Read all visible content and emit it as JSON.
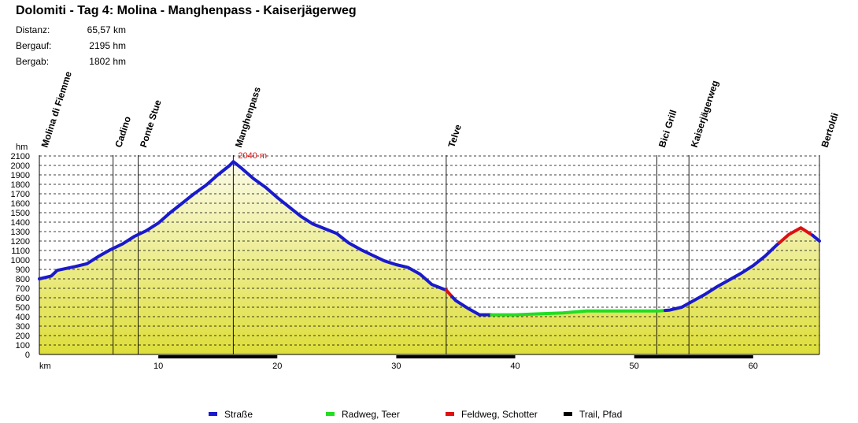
{
  "title": "Dolomiti - Tag 4: Molina - Manghenpass - Kaiserjägerweg",
  "stats": [
    {
      "label": "Distanz:",
      "value": "65,57 km"
    },
    {
      "label": "Bergauf:",
      "value": "2195 hm"
    },
    {
      "label": "Bergab:",
      "value": "1802 hm"
    }
  ],
  "legend": [
    {
      "label": "Straße",
      "color": "#1a1acc"
    },
    {
      "label": "Radweg, Teer",
      "color": "#22dd22"
    },
    {
      "label": "Feldweg, Schotter",
      "color": "#dd1111"
    },
    {
      "label": "Trail, Pfad",
      "color": "#000000"
    }
  ],
  "chart_data": {
    "type": "area",
    "y_unit": "hm",
    "x_unit": "km",
    "xlim": [
      0,
      65.57
    ],
    "ylim": [
      0,
      2100
    ],
    "y_ticks": [
      0,
      100,
      200,
      300,
      400,
      500,
      600,
      700,
      800,
      900,
      1000,
      1100,
      1200,
      1300,
      1400,
      1500,
      1600,
      1700,
      1800,
      1900,
      2000,
      2100
    ],
    "x_ticks": [
      10,
      20,
      30,
      40,
      50,
      60
    ],
    "grid": true,
    "peak_label": "2040 m",
    "peak": {
      "x": 16.3,
      "y": 2040
    },
    "waypoints": [
      {
        "name": "Molina di Fiemme",
        "x": 0
      },
      {
        "name": "Cadino",
        "x": 6.2
      },
      {
        "name": "Ponte Stue",
        "x": 8.3
      },
      {
        "name": "Manghenpass",
        "x": 16.3
      },
      {
        "name": "Telve",
        "x": 34.2
      },
      {
        "name": "Bici Grill",
        "x": 51.9
      },
      {
        "name": "Kaiserjägerweg",
        "x": 54.6
      },
      {
        "name": "Bertoldi",
        "x": 65.57
      }
    ],
    "profile": [
      [
        0,
        800
      ],
      [
        1,
        830
      ],
      [
        1.5,
        890
      ],
      [
        3,
        930
      ],
      [
        4,
        960
      ],
      [
        5,
        1040
      ],
      [
        6,
        1110
      ],
      [
        7,
        1170
      ],
      [
        8,
        1250
      ],
      [
        9,
        1310
      ],
      [
        10,
        1390
      ],
      [
        11,
        1500
      ],
      [
        12,
        1600
      ],
      [
        13,
        1700
      ],
      [
        14,
        1790
      ],
      [
        15,
        1900
      ],
      [
        16,
        2000
      ],
      [
        16.3,
        2040
      ],
      [
        17,
        1970
      ],
      [
        18,
        1860
      ],
      [
        19,
        1770
      ],
      [
        20,
        1660
      ],
      [
        21,
        1560
      ],
      [
        22,
        1460
      ],
      [
        23,
        1380
      ],
      [
        24,
        1330
      ],
      [
        25,
        1280
      ],
      [
        26,
        1180
      ],
      [
        27,
        1110
      ],
      [
        28,
        1050
      ],
      [
        29,
        990
      ],
      [
        30,
        950
      ],
      [
        31,
        920
      ],
      [
        32,
        850
      ],
      [
        33,
        740
      ],
      [
        34.2,
        680
      ],
      [
        35,
        570
      ],
      [
        36,
        490
      ],
      [
        37,
        420
      ],
      [
        38,
        420
      ],
      [
        40,
        420
      ],
      [
        42,
        430
      ],
      [
        44,
        440
      ],
      [
        46,
        460
      ],
      [
        48,
        460
      ],
      [
        50,
        460
      ],
      [
        52,
        460
      ],
      [
        53,
        470
      ],
      [
        54,
        500
      ],
      [
        55,
        570
      ],
      [
        56,
        640
      ],
      [
        57,
        720
      ],
      [
        58,
        790
      ],
      [
        59,
        860
      ],
      [
        60,
        940
      ],
      [
        61,
        1040
      ],
      [
        62,
        1160
      ],
      [
        63,
        1270
      ],
      [
        64,
        1340
      ],
      [
        65,
        1260
      ],
      [
        65.57,
        1200
      ]
    ],
    "segments": [
      {
        "surface": "Straße",
        "from": 0,
        "to": 34.2
      },
      {
        "surface": "Feldweg, Schotter",
        "from": 34.2,
        "to": 34.7
      },
      {
        "surface": "Straße",
        "from": 34.7,
        "to": 38
      },
      {
        "surface": "Radweg, Teer",
        "from": 38,
        "to": 52.6
      },
      {
        "surface": "Straße",
        "from": 52.6,
        "to": 62.2
      },
      {
        "surface": "Feldweg, Schotter",
        "from": 62.2,
        "to": 65
      },
      {
        "surface": "Straße",
        "from": 65,
        "to": 65.57
      }
    ]
  }
}
